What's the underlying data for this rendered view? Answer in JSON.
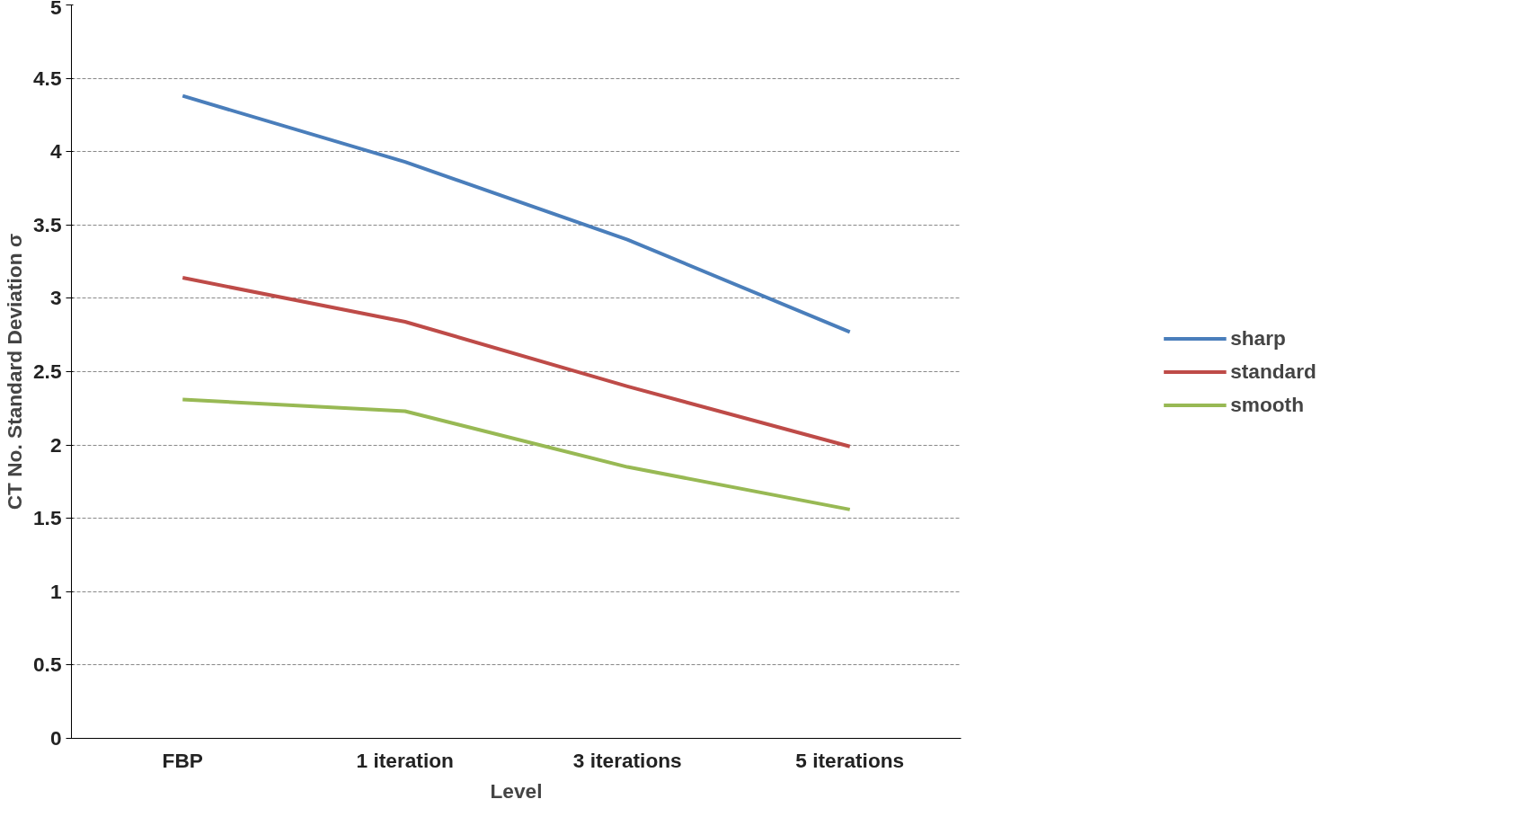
{
  "chart_data": {
    "type": "line",
    "xlabel": "Level",
    "ylabel": "CT No. Standard Deviation σ",
    "categories": [
      "FBP",
      "1 iteration",
      "3 iterations",
      "5 iterations"
    ],
    "series": [
      {
        "name": "sharp",
        "color": "#4a7ebb",
        "values": [
          4.38,
          3.93,
          3.4,
          2.77
        ]
      },
      {
        "name": "standard",
        "color": "#be4b48",
        "values": [
          3.14,
          2.84,
          2.4,
          1.99
        ]
      },
      {
        "name": "smooth",
        "color": "#98b954",
        "values": [
          2.31,
          2.23,
          1.85,
          1.56
        ]
      }
    ],
    "ylim": [
      0,
      5
    ],
    "yticks": [
      0,
      0.5,
      1,
      1.5,
      2,
      2.5,
      3,
      3.5,
      4,
      4.5,
      5
    ],
    "grid": "y",
    "legend": "right",
    "marker": "none",
    "line_style": "solid"
  }
}
